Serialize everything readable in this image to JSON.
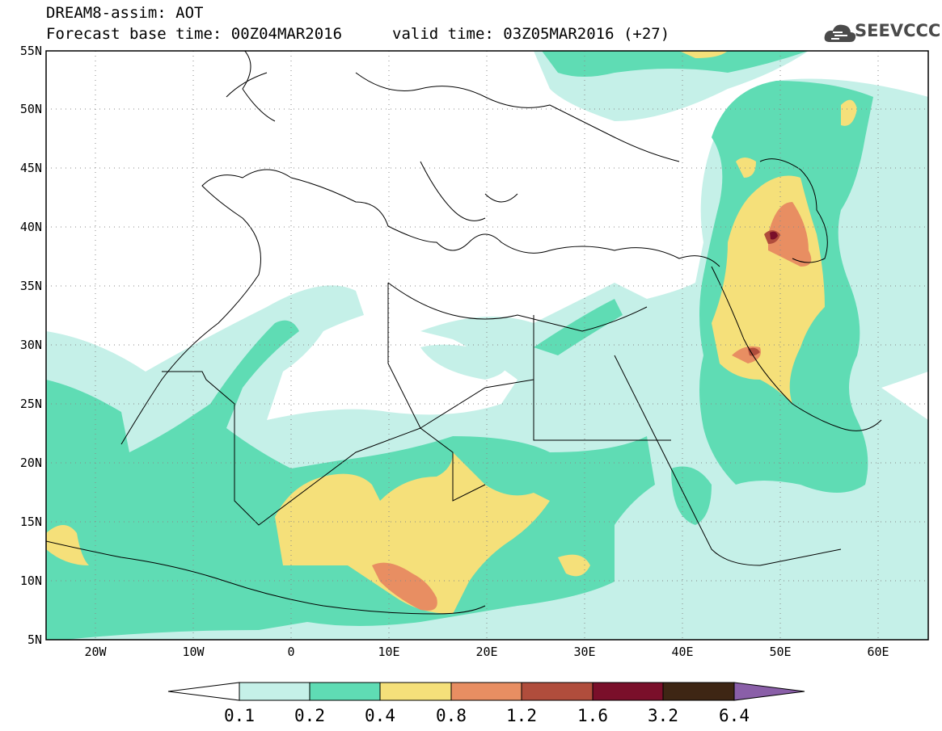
{
  "header": {
    "title": "DREAM8-assim: AOT",
    "forecast_base": "Forecast base time: 00Z04MAR2016",
    "valid_time": "valid time: 03Z05MAR2016 (+27)"
  },
  "logo": {
    "text": "SEEVCCC",
    "icon": "cloud-logo-icon",
    "color": "#4a4a4a"
  },
  "map": {
    "lon_range": [
      -25,
      65
    ],
    "lat_range": [
      5,
      55
    ],
    "lat_labels": [
      "5N",
      "10N",
      "15N",
      "20N",
      "25N",
      "30N",
      "35N",
      "40N",
      "45N",
      "50N",
      "55N"
    ],
    "lat_values": [
      5,
      10,
      15,
      20,
      25,
      30,
      35,
      40,
      45,
      50,
      55
    ],
    "lon_labels": [
      "20W",
      "10W",
      "0",
      "10E",
      "20E",
      "30E",
      "40E",
      "50E",
      "60E"
    ],
    "lon_values": [
      -20,
      -10,
      0,
      10,
      20,
      30,
      40,
      50,
      60
    ],
    "grid": "dotted"
  },
  "colorbar": {
    "levels": [
      "0.1",
      "0.2",
      "0.4",
      "0.8",
      "1.2",
      "1.6",
      "3.2",
      "6.4"
    ],
    "colors": [
      "#ffffff",
      "#c5f0e8",
      "#5fdcb4",
      "#f5e07a",
      "#e88e62",
      "#b04d3c",
      "#7a0f2a",
      "#3e2614",
      "#8a5fa8"
    ]
  }
}
